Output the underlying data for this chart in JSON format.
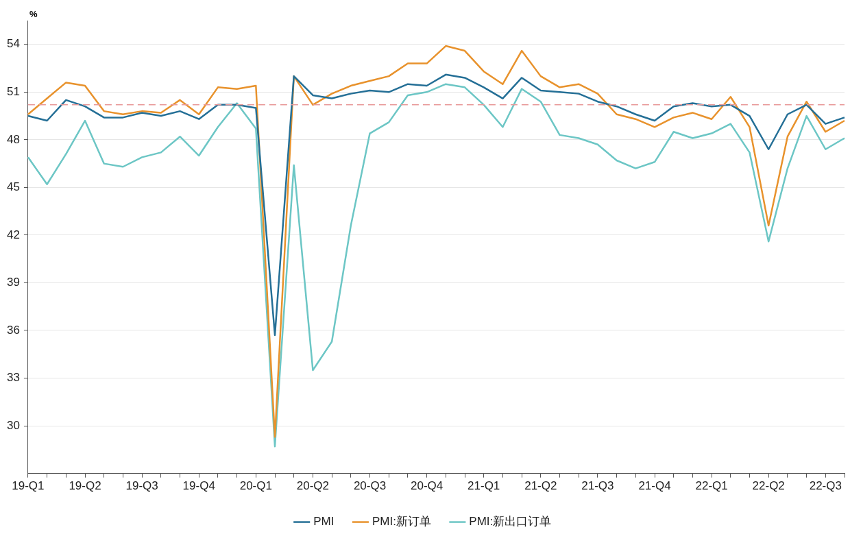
{
  "chart_data": {
    "type": "line",
    "ylabel": "%",
    "categories": [
      "19-Q1",
      null,
      null,
      "19-Q2",
      null,
      null,
      "19-Q3",
      null,
      null,
      "19-Q4",
      null,
      null,
      "20-Q1",
      null,
      null,
      "20-Q2",
      null,
      null,
      "20-Q3",
      null,
      null,
      "20-Q4",
      null,
      null,
      "21-Q1",
      null,
      null,
      "21-Q2",
      null,
      null,
      "21-Q3",
      null,
      null,
      "21-Q4",
      null,
      null,
      "22-Q1",
      null,
      null,
      "22-Q2",
      null,
      null,
      "22-Q3",
      null
    ],
    "series": [
      {
        "name": "PMI",
        "color": "#246f96",
        "values": [
          49.5,
          49.2,
          50.5,
          50.1,
          49.4,
          49.4,
          49.7,
          49.5,
          49.8,
          49.3,
          50.2,
          50.2,
          50.0,
          35.7,
          52.0,
          50.8,
          50.6,
          50.9,
          51.1,
          51.0,
          51.5,
          51.4,
          52.1,
          51.9,
          51.3,
          50.6,
          51.9,
          51.1,
          51.0,
          50.9,
          50.4,
          50.1,
          49.6,
          49.2,
          50.1,
          50.3,
          50.1,
          50.2,
          49.5,
          47.4,
          49.6,
          50.2,
          49.0,
          49.4
        ]
      },
      {
        "name": "PMI:新订单",
        "color": "#e8922c",
        "values": [
          49.6,
          50.6,
          51.6,
          51.4,
          49.8,
          49.6,
          49.8,
          49.7,
          50.5,
          49.6,
          51.3,
          51.2,
          51.4,
          29.3,
          52.0,
          50.2,
          50.9,
          51.4,
          51.7,
          52.0,
          52.8,
          52.8,
          53.9,
          53.6,
          52.3,
          51.5,
          53.6,
          52.0,
          51.3,
          51.5,
          50.9,
          49.6,
          49.3,
          48.8,
          49.4,
          49.7,
          49.3,
          50.7,
          48.8,
          42.6,
          48.2,
          50.4,
          48.5,
          49.2
        ]
      },
      {
        "name": "PMI:新出口订单",
        "color": "#6cc6c5",
        "values": [
          46.9,
          45.2,
          47.1,
          49.2,
          46.5,
          46.3,
          46.9,
          47.2,
          48.2,
          47.0,
          48.8,
          50.3,
          48.7,
          28.7,
          46.4,
          33.5,
          35.3,
          42.6,
          48.4,
          49.1,
          50.8,
          51.0,
          51.5,
          51.3,
          50.2,
          48.8,
          51.2,
          50.4,
          48.3,
          48.1,
          47.7,
          46.7,
          46.2,
          46.6,
          48.5,
          48.1,
          48.4,
          49.0,
          47.2,
          41.6,
          46.2,
          49.5,
          47.4,
          48.1
        ]
      }
    ],
    "ylim": [
      27,
      55.5
    ],
    "yticks": [
      30,
      33,
      36,
      39,
      42,
      45,
      48,
      51,
      54
    ],
    "ref_lines": [
      {
        "axis": "y",
        "value": 50.2,
        "color": "#e89a9a",
        "line_style": "dashed"
      }
    ],
    "grid": "y",
    "legend": "bottom",
    "marker": "none",
    "line_style": "solid"
  }
}
